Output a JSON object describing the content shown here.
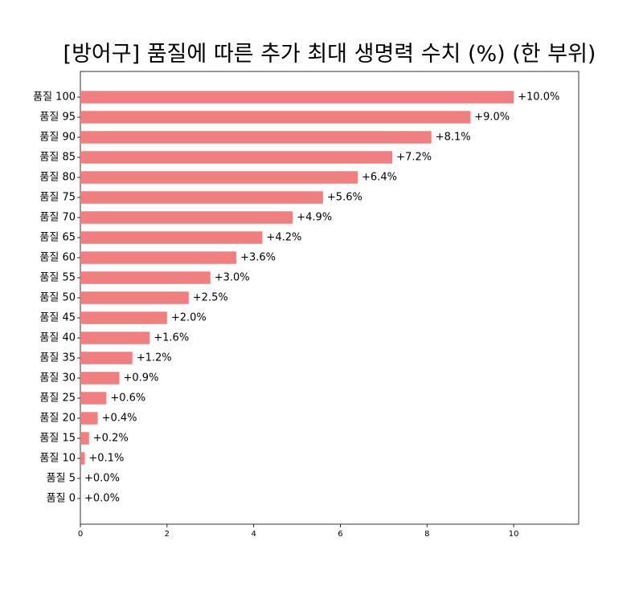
{
  "chart_data": {
    "type": "bar",
    "orientation": "horizontal",
    "title": "[방어구]  품질에 따른 추가 최대 생명력 수치 (%) (한 부위)",
    "xlabel": "",
    "ylabel": "",
    "categories": [
      "품질 100",
      "품질 95",
      "품질 90",
      "품질 85",
      "품질 80",
      "품질 75",
      "품질 70",
      "품질 65",
      "품질 60",
      "품질 55",
      "품질 50",
      "품질 45",
      "품질 40",
      "품질 35",
      "품질 30",
      "품질 25",
      "품질 20",
      "품질 15",
      "품질 10",
      "품질 5",
      "품질 0"
    ],
    "values": [
      10.0,
      9.0,
      8.1,
      7.2,
      6.4,
      5.6,
      4.9,
      4.2,
      3.6,
      3.0,
      2.5,
      2.0,
      1.6,
      1.2,
      0.9,
      0.6,
      0.4,
      0.2,
      0.1,
      0.0,
      0.0
    ],
    "value_labels": [
      "+10.0%",
      "+9.0%",
      "+8.1%",
      "+7.2%",
      "+6.4%",
      "+5.6%",
      "+4.9%",
      "+4.2%",
      "+3.6%",
      "+3.0%",
      "+2.5%",
      "+2.0%",
      "+1.6%",
      "+1.2%",
      "+0.9%",
      "+0.6%",
      "+0.4%",
      "+0.2%",
      "+0.1%",
      "+0.0%",
      "+0.0%"
    ],
    "xlim": [
      0,
      11.5
    ],
    "xticks": [
      0,
      2,
      4,
      6,
      8,
      10
    ],
    "grid": false,
    "bar_color": "#f08080"
  }
}
